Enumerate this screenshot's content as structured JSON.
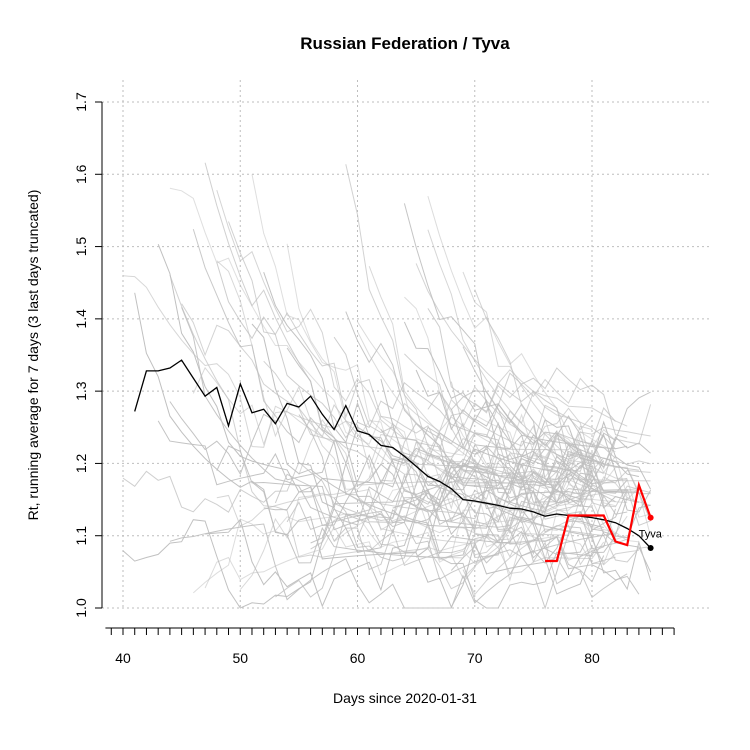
{
  "chart_data": {
    "type": "line",
    "title": "Russian Federation / Tyva",
    "xlabel": "Days since 2020-01-31",
    "ylabel": "Rt, running average for 7 days (3 last days truncated)",
    "xlim": [
      38.5,
      87.5
    ],
    "ylim": [
      1.0,
      1.7
    ],
    "x_ticks": [
      40,
      50,
      60,
      70,
      80
    ],
    "y_ticks": [
      1.0,
      1.1,
      1.2,
      1.3,
      1.4,
      1.5,
      1.6,
      1.7
    ],
    "grid": true,
    "colors": {
      "background": "#bfbfbf",
      "country": "#000000",
      "highlight": "#ff0000"
    },
    "series": [
      {
        "name": "",
        "role": "country",
        "x": [
          41,
          42,
          43,
          44,
          45,
          46,
          47,
          48,
          49,
          50,
          51,
          52,
          53,
          54,
          55,
          56,
          57,
          58,
          59,
          60,
          61,
          62,
          63,
          64,
          65,
          66,
          67,
          68,
          69,
          70,
          71,
          72,
          73,
          74,
          75,
          76,
          77,
          78,
          79,
          80,
          81,
          82,
          83,
          84,
          85
        ],
        "y": [
          1.272,
          1.328,
          1.328,
          1.332,
          1.343,
          1.318,
          1.293,
          1.305,
          1.252,
          1.31,
          1.27,
          1.275,
          1.255,
          1.283,
          1.278,
          1.293,
          1.268,
          1.247,
          1.28,
          1.245,
          1.24,
          1.225,
          1.222,
          1.21,
          1.196,
          1.182,
          1.175,
          1.165,
          1.15,
          1.148,
          1.145,
          1.142,
          1.138,
          1.137,
          1.133,
          1.127,
          1.13,
          1.128,
          1.127,
          1.125,
          1.122,
          1.118,
          1.11,
          1.1,
          1.083
        ]
      },
      {
        "name": "Tyva",
        "role": "highlight",
        "x": [
          76,
          77,
          78,
          79,
          80,
          81,
          82,
          83,
          84,
          85
        ],
        "y": [
          1.065,
          1.065,
          1.128,
          1.128,
          1.128,
          1.128,
          1.092,
          1.087,
          1.17,
          1.125
        ]
      }
    ],
    "annotations": [
      {
        "text": "Tyva",
        "x": 85,
        "y": 1.103
      }
    ]
  }
}
